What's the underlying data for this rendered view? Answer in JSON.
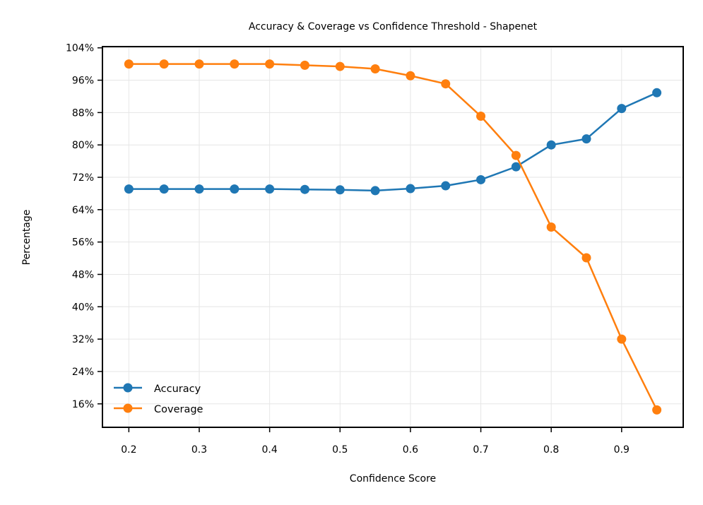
{
  "chart_data": {
    "type": "line",
    "title": "Accuracy & Coverage vs Confidence Threshold - Shapenet",
    "xlabel": "Confidence Score",
    "ylabel": "Percentage",
    "x": [
      0.2,
      0.25,
      0.3,
      0.35,
      0.4,
      0.45,
      0.5,
      0.55,
      0.6,
      0.65,
      0.7,
      0.75,
      0.8,
      0.85,
      0.9,
      0.95
    ],
    "xticks": [
      0.2,
      0.3,
      0.4,
      0.5,
      0.6,
      0.7,
      0.8,
      0.9
    ],
    "xtick_labels": [
      "0.2",
      "0.3",
      "0.4",
      "0.5",
      "0.6",
      "0.7",
      "0.8",
      "0.9"
    ],
    "yticks": [
      16,
      24,
      32,
      40,
      48,
      56,
      64,
      72,
      80,
      88,
      96,
      104
    ],
    "ytick_labels": [
      "16%",
      "24%",
      "32%",
      "40%",
      "48%",
      "56%",
      "64%",
      "72%",
      "80%",
      "88%",
      "96%",
      "104%"
    ],
    "xlim": [
      0.1625,
      0.9875
    ],
    "ylim": [
      10.2,
      104.3
    ],
    "grid": true,
    "legend_position": "lower-left",
    "series": [
      {
        "name": "Accuracy",
        "color": "#1f77b4",
        "values": [
          69.1,
          69.1,
          69.1,
          69.1,
          69.1,
          69.0,
          68.9,
          68.7,
          69.2,
          69.9,
          71.4,
          74.6,
          80.0,
          81.5,
          89.0,
          92.9
        ]
      },
      {
        "name": "Coverage",
        "color": "#ff7f0e",
        "values": [
          100.0,
          100.0,
          100.0,
          100.0,
          100.0,
          99.7,
          99.4,
          98.8,
          97.1,
          95.1,
          87.1,
          77.4,
          59.7,
          52.1,
          32.0,
          14.5
        ]
      }
    ]
  }
}
